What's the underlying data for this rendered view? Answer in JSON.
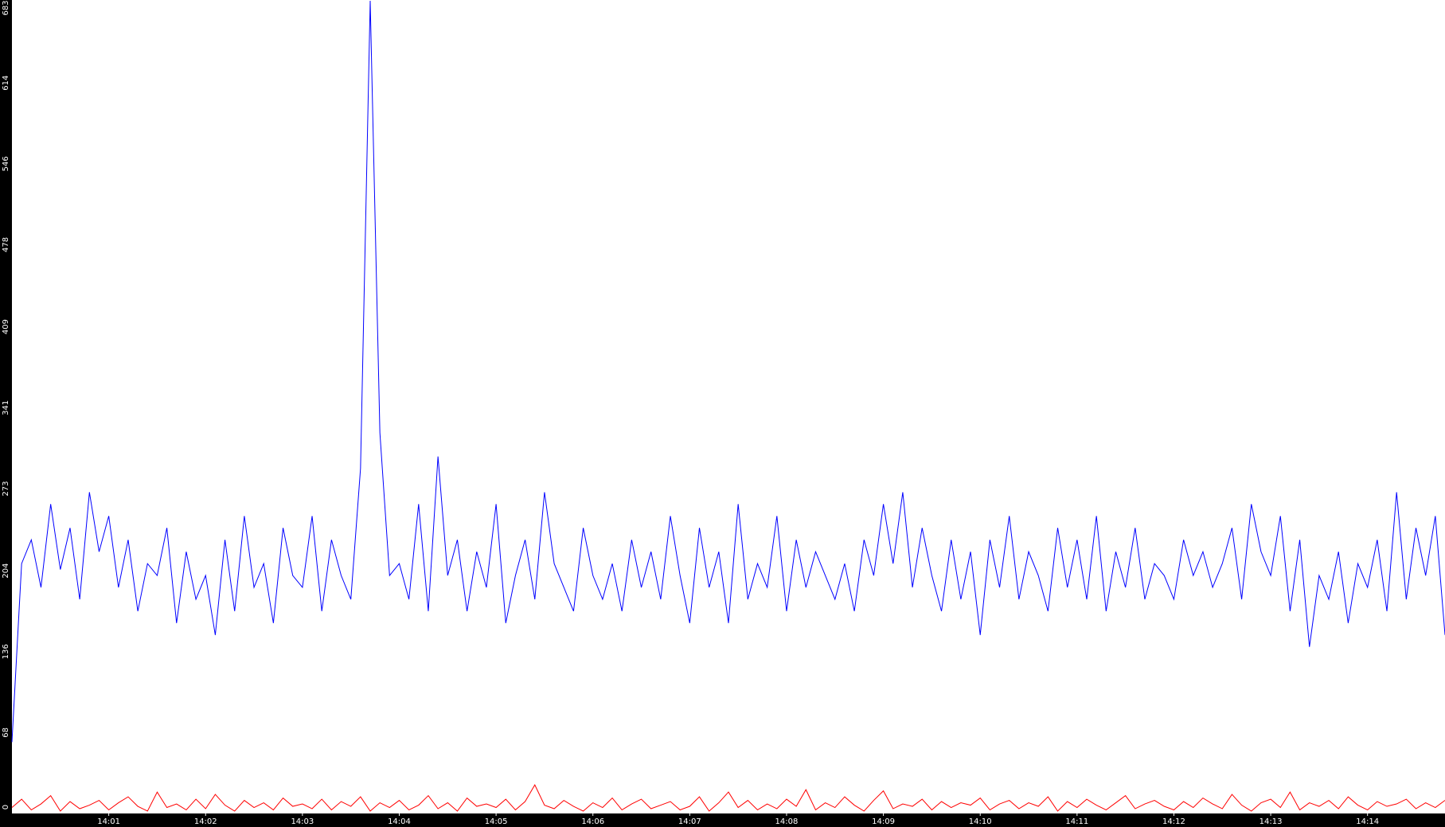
{
  "chart_data": {
    "type": "line",
    "categories": [
      null,
      null,
      null,
      null,
      null,
      null,
      null,
      null,
      null,
      null,
      "14:01",
      null,
      null,
      null,
      null,
      null,
      null,
      null,
      null,
      null,
      "14:02",
      null,
      null,
      null,
      null,
      null,
      null,
      null,
      null,
      null,
      "14:03",
      null,
      null,
      null,
      null,
      null,
      null,
      null,
      null,
      null,
      "14:04",
      null,
      null,
      null,
      null,
      null,
      null,
      null,
      null,
      null,
      "14:05",
      null,
      null,
      null,
      null,
      null,
      null,
      null,
      null,
      null,
      "14:06",
      null,
      null,
      null,
      null,
      null,
      null,
      null,
      null,
      null,
      "14:07",
      null,
      null,
      null,
      null,
      null,
      null,
      null,
      null,
      null,
      "14:08",
      null,
      null,
      null,
      null,
      null,
      null,
      null,
      null,
      null,
      "14:09",
      null,
      null,
      null,
      null,
      null,
      null,
      null,
      null,
      null,
      "14:10",
      null,
      null,
      null,
      null,
      null,
      null,
      null,
      null,
      null,
      "14:11",
      null,
      null,
      null,
      null,
      null,
      null,
      null,
      null,
      null,
      "14:12",
      null,
      null,
      null,
      null,
      null,
      null,
      null,
      null,
      null,
      "14:13",
      null,
      null,
      null,
      null,
      null,
      null,
      null,
      null,
      null,
      "14:14",
      null,
      null,
      null,
      null,
      null,
      null,
      null,
      null
    ],
    "series": [
      {
        "color": "#0000ff",
        "values": [
          60,
          210,
          230,
          190,
          260,
          205,
          240,
          180,
          270,
          220,
          250,
          190,
          230,
          170,
          210,
          200,
          240,
          160,
          220,
          180,
          200,
          150,
          230,
          170,
          250,
          190,
          210,
          160,
          240,
          200,
          190,
          250,
          170,
          230,
          200,
          180,
          290,
          683,
          320,
          200,
          210,
          180,
          260,
          170,
          300,
          200,
          230,
          170,
          220,
          190,
          260,
          160,
          200,
          230,
          180,
          270,
          210,
          190,
          170,
          240,
          200,
          180,
          210,
          170,
          230,
          190,
          220,
          180,
          250,
          200,
          160,
          240,
          190,
          220,
          160,
          260,
          180,
          210,
          190,
          250,
          170,
          230,
          190,
          220,
          200,
          180,
          210,
          170,
          230,
          200,
          260,
          210,
          270,
          190,
          240,
          200,
          170,
          230,
          180,
          220,
          150,
          230,
          190,
          250,
          180,
          220,
          200,
          170,
          240,
          190,
          230,
          180,
          250,
          170,
          220,
          190,
          240,
          180,
          210,
          200,
          180,
          230,
          200,
          220,
          190,
          210,
          240,
          180,
          260,
          220,
          200,
          250,
          170,
          230,
          140,
          200,
          180,
          220,
          160,
          210,
          190,
          230,
          170,
          270,
          180,
          240,
          200,
          250,
          150
        ]
      },
      {
        "color": "#ff0000",
        "values": [
          5,
          12,
          3,
          8,
          15,
          2,
          10,
          4,
          7,
          11,
          3,
          9,
          14,
          6,
          2,
          18,
          5,
          8,
          3,
          12,
          4,
          16,
          7,
          2,
          11,
          5,
          9,
          3,
          13,
          6,
          8,
          4,
          12,
          3,
          10,
          6,
          14,
          2,
          9,
          5,
          11,
          3,
          7,
          15,
          4,
          9,
          2,
          13,
          6,
          8,
          5,
          12,
          3,
          10,
          24,
          7,
          4,
          11,
          6,
          2,
          9,
          5,
          13,
          3,
          8,
          12,
          4,
          7,
          10,
          3,
          6,
          14,
          2,
          9,
          18,
          5,
          11,
          3,
          8,
          4,
          12,
          6,
          20,
          3,
          9,
          5,
          14,
          7,
          2,
          11,
          19,
          4,
          8,
          6,
          12,
          3,
          10,
          5,
          9,
          7,
          13,
          3,
          8,
          11,
          4,
          9,
          6,
          14,
          2,
          10,
          5,
          12,
          7,
          3,
          9,
          15,
          4,
          8,
          11,
          6,
          3,
          10,
          5,
          13,
          8,
          4,
          16,
          7,
          2,
          9,
          12,
          5,
          18,
          3,
          9,
          6,
          11,
          4,
          14,
          7,
          3,
          10,
          6,
          8,
          12,
          4,
          9,
          5,
          11
        ]
      }
    ],
    "ylim": [
      0,
      683
    ],
    "yticks": [
      0,
      68,
      136,
      204,
      273,
      341,
      409,
      478,
      546,
      614,
      683
    ],
    "grid": false
  }
}
